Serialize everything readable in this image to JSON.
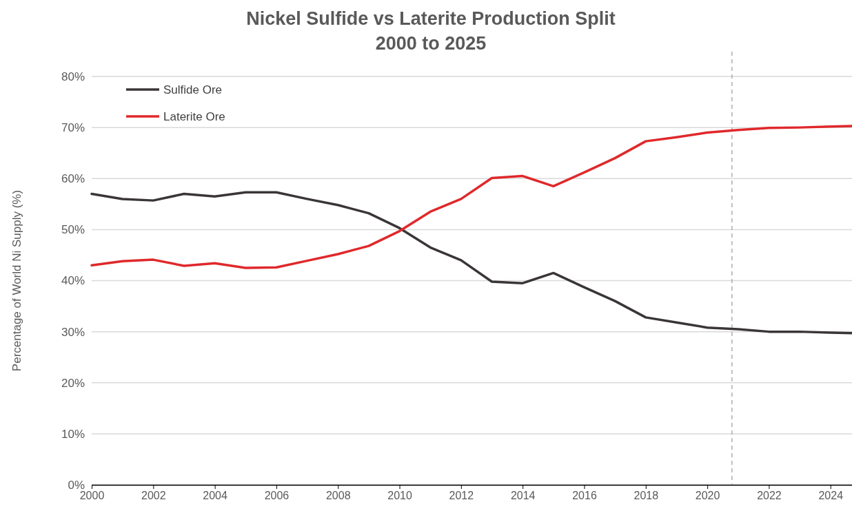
{
  "chart_data": {
    "type": "line",
    "title": "Nickel Sulfide vs Laterite Production Split",
    "subtitle": "2000 to 2025",
    "ylabel": "Percentage of World Ni Supply  (%)",
    "x": [
      2000,
      2001,
      2002,
      2003,
      2004,
      2005,
      2006,
      2007,
      2008,
      2009,
      2010,
      2011,
      2012,
      2013,
      2014,
      2015,
      2016,
      2017,
      2018,
      2019,
      2020,
      2021,
      2022,
      2023,
      2024,
      2024.7
    ],
    "series": [
      {
        "name": "Sulfide Ore",
        "color": "#3a3536",
        "values": [
          57,
          56,
          55.7,
          57,
          56.5,
          57.3,
          57.3,
          56,
          54.8,
          53.2,
          50.3,
          46.5,
          44,
          39.8,
          39.5,
          41.5,
          38.7,
          36,
          32.8,
          31.8,
          30.8,
          30.5,
          30,
          30,
          29.8,
          29.7
        ]
      },
      {
        "name": "Laterite Ore",
        "color": "#e0282b",
        "values": [
          43,
          43.8,
          44.1,
          42.9,
          43.4,
          42.5,
          42.6,
          43.9,
          45.2,
          46.8,
          49.7,
          53.5,
          56,
          60.1,
          60.5,
          58.5,
          61.2,
          64,
          67.3,
          68.1,
          69,
          69.5,
          69.9,
          70,
          70.2,
          70.3
        ]
      }
    ],
    "xlim": [
      2000,
      2024.7
    ],
    "xticks": [
      2000,
      2002,
      2004,
      2006,
      2008,
      2010,
      2012,
      2014,
      2016,
      2018,
      2020,
      2022,
      2024
    ],
    "ylim": [
      0,
      80
    ],
    "yticks": [
      {
        "value": 0,
        "label": "0%"
      },
      {
        "value": 10,
        "label": "10%"
      },
      {
        "value": 20,
        "label": "20%"
      },
      {
        "value": 30,
        "label": "30%"
      },
      {
        "value": 40,
        "label": "40%"
      },
      {
        "value": 50,
        "label": "50%"
      },
      {
        "value": 60,
        "label": "60%"
      },
      {
        "value": 70,
        "label": "70%"
      },
      {
        "value": 80,
        "label": "80%"
      }
    ],
    "ref_lines": [
      {
        "axis": "x",
        "value": 2020.8,
        "color": "#999999",
        "line_style": "dashed"
      }
    ],
    "grid": "y",
    "legend": "top left",
    "marker": "none",
    "line_style": "solid"
  }
}
